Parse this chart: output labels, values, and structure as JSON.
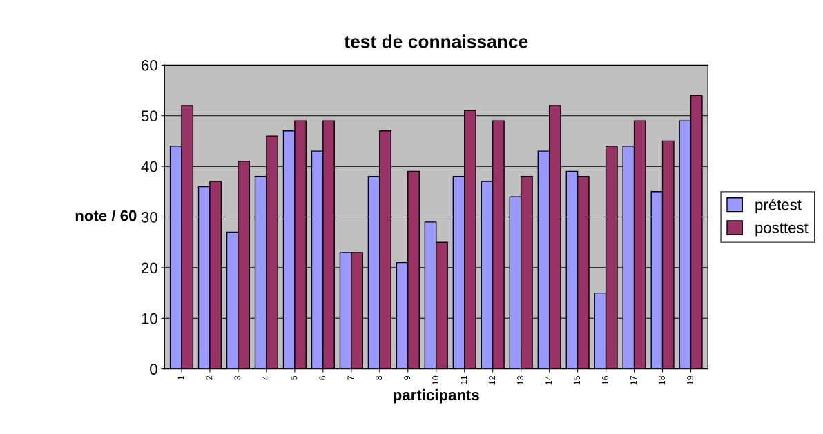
{
  "chart_data": {
    "type": "bar",
    "title": "test de connaissance",
    "xlabel": "participants",
    "ylabel": "note / 60",
    "categories": [
      "1",
      "2",
      "3",
      "4",
      "5",
      "6",
      "7",
      "8",
      "9",
      "10",
      "11",
      "12",
      "13",
      "14",
      "15",
      "16",
      "17",
      "18",
      "19"
    ],
    "series": [
      {
        "name": "prétest",
        "color": "#9999ff",
        "values": [
          44,
          36,
          27,
          38,
          47,
          43,
          23,
          38,
          21,
          29,
          38,
          37,
          34,
          43,
          39,
          15,
          44,
          35,
          49
        ]
      },
      {
        "name": "posttest",
        "color": "#993366",
        "values": [
          52,
          37,
          41,
          46,
          49,
          49,
          23,
          47,
          39,
          25,
          51,
          49,
          38,
          52,
          38,
          44,
          49,
          45,
          54
        ]
      }
    ],
    "ylim": [
      0,
      60
    ],
    "yticks": [
      0,
      10,
      20,
      30,
      40,
      50,
      60
    ],
    "grid": "y",
    "legend": "right"
  }
}
